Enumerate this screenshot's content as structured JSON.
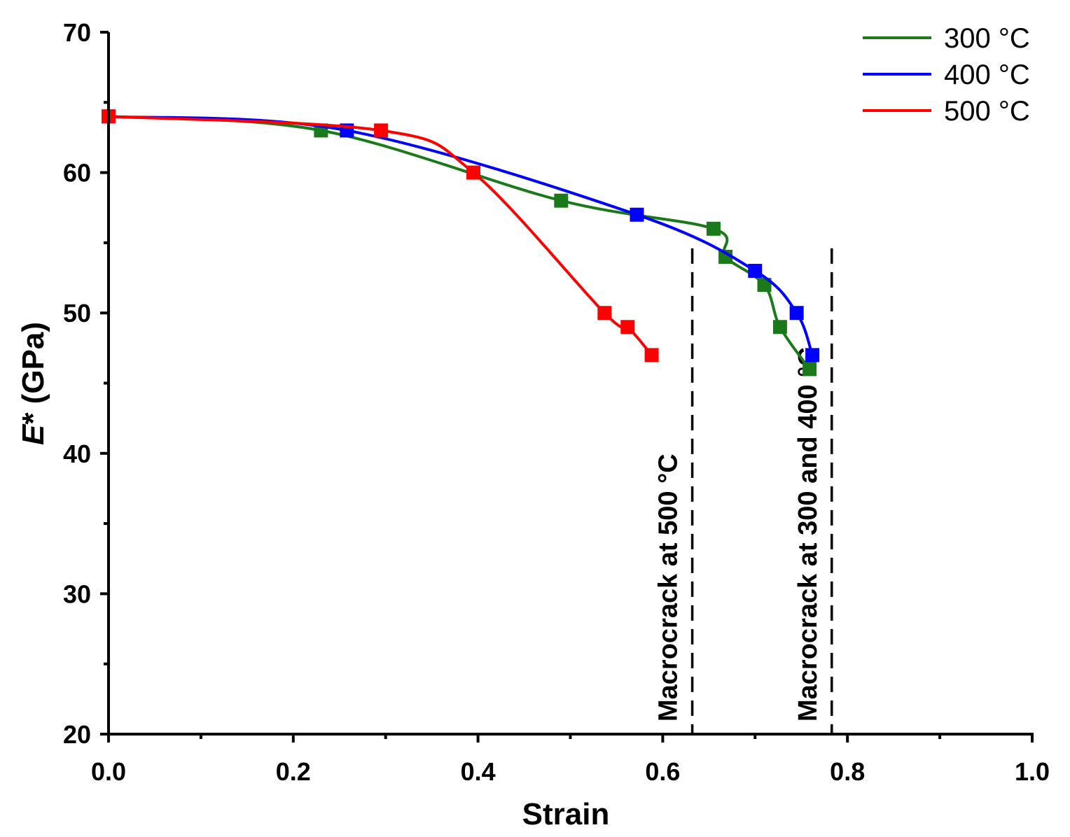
{
  "chart_data": {
    "type": "line",
    "title": "",
    "xlabel": "Strain",
    "ylabel_italic": "E",
    "ylabel_rest": "* (GPa)",
    "xlim": [
      0.0,
      1.0
    ],
    "ylim": [
      20,
      70
    ],
    "xticks": [
      "0.0",
      "0.2",
      "0.4",
      "0.6",
      "0.8",
      "1.0"
    ],
    "xtick_values": [
      0.0,
      0.2,
      0.4,
      0.6,
      0.8,
      1.0
    ],
    "yticks": [
      "20",
      "30",
      "40",
      "50",
      "60",
      "70"
    ],
    "ytick_values": [
      20,
      30,
      40,
      50,
      60,
      70
    ],
    "legend_position": "top-right",
    "series": [
      {
        "name": "300 °C",
        "color": "#1a7a1a",
        "points": [
          [
            0.0,
            64
          ],
          [
            0.23,
            63
          ],
          [
            0.49,
            58
          ],
          [
            0.655,
            56
          ],
          [
            0.668,
            54
          ],
          [
            0.71,
            52
          ],
          [
            0.727,
            49
          ],
          [
            0.759,
            46
          ]
        ]
      },
      {
        "name": "400 °C",
        "color": "#0000ff",
        "points": [
          [
            0.0,
            64
          ],
          [
            0.258,
            63
          ],
          [
            0.572,
            57
          ],
          [
            0.7,
            53
          ],
          [
            0.745,
            50
          ],
          [
            0.762,
            47
          ]
        ]
      },
      {
        "name": "500 °C",
        "color": "#ff0000",
        "points": [
          [
            0.0,
            64
          ],
          [
            0.295,
            63
          ],
          [
            0.395,
            60
          ],
          [
            0.537,
            50
          ],
          [
            0.562,
            49
          ],
          [
            0.588,
            47
          ]
        ]
      }
    ],
    "annotations": [
      {
        "x": 0.632,
        "label": "Macrocrack at 500 °C"
      },
      {
        "x": 0.783,
        "label": "Macrocrack at 300 and 400 °C"
      }
    ]
  }
}
